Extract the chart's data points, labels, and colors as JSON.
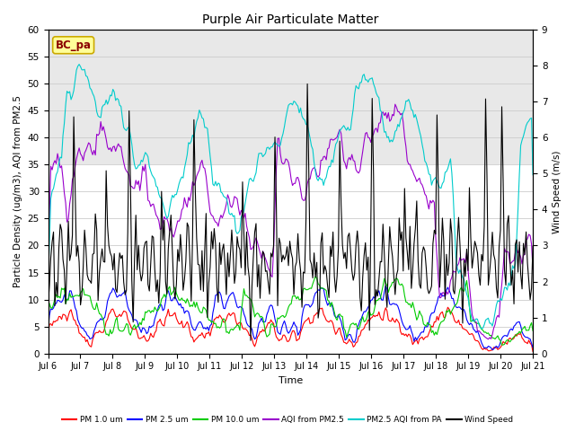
{
  "title": "Purple Air Particulate Matter",
  "xlabel": "Time",
  "ylabel_left": "Particle Density (ug/m3), AQI from PM2.5",
  "ylabel_right": "Wind Speed (m/s)",
  "ylim_left": [
    0,
    60
  ],
  "ylim_right": [
    0.0,
    9.0
  ],
  "yticks_left": [
    0,
    5,
    10,
    15,
    20,
    25,
    30,
    35,
    40,
    45,
    50,
    55,
    60
  ],
  "yticks_right": [
    0.0,
    1.0,
    2.0,
    3.0,
    4.0,
    5.0,
    6.0,
    7.0,
    8.0,
    9.0
  ],
  "xtick_labels": [
    "Jul 6",
    "Jul 7",
    "Jul 8",
    "Jul 9",
    "Jul 10",
    "Jul 11",
    "Jul 12",
    "Jul 13",
    "Jul 14",
    "Jul 15",
    "Jul 16",
    "Jul 17",
    "Jul 18",
    "Jul 19",
    "Jul 20",
    "Jul 21"
  ],
  "annotation_text": "BC_pa",
  "annotation_color": "#8B0000",
  "annotation_bg": "#FFFF99",
  "annotation_edge": "#CCAA00",
  "colors": {
    "pm1": "#FF0000",
    "pm25": "#0000FF",
    "pm10": "#00CC00",
    "aqi_pm25": "#9900CC",
    "pm25_aqi_pa": "#00CCCC",
    "wind": "#000000"
  },
  "legend_labels": [
    "PM 1.0 um",
    "PM 2.5 um",
    "PM 10.0 um",
    "AQI from PM2.5",
    "PM2.5 AQI from PA",
    "Wind Speed"
  ],
  "grid_color": "#CCCCCC",
  "bg_color_upper": "#E8E8E8",
  "bg_color_lower": "#FFFFFF",
  "fig_bg": "#FFFFFF",
  "n_days": 15,
  "line_width": 0.8
}
